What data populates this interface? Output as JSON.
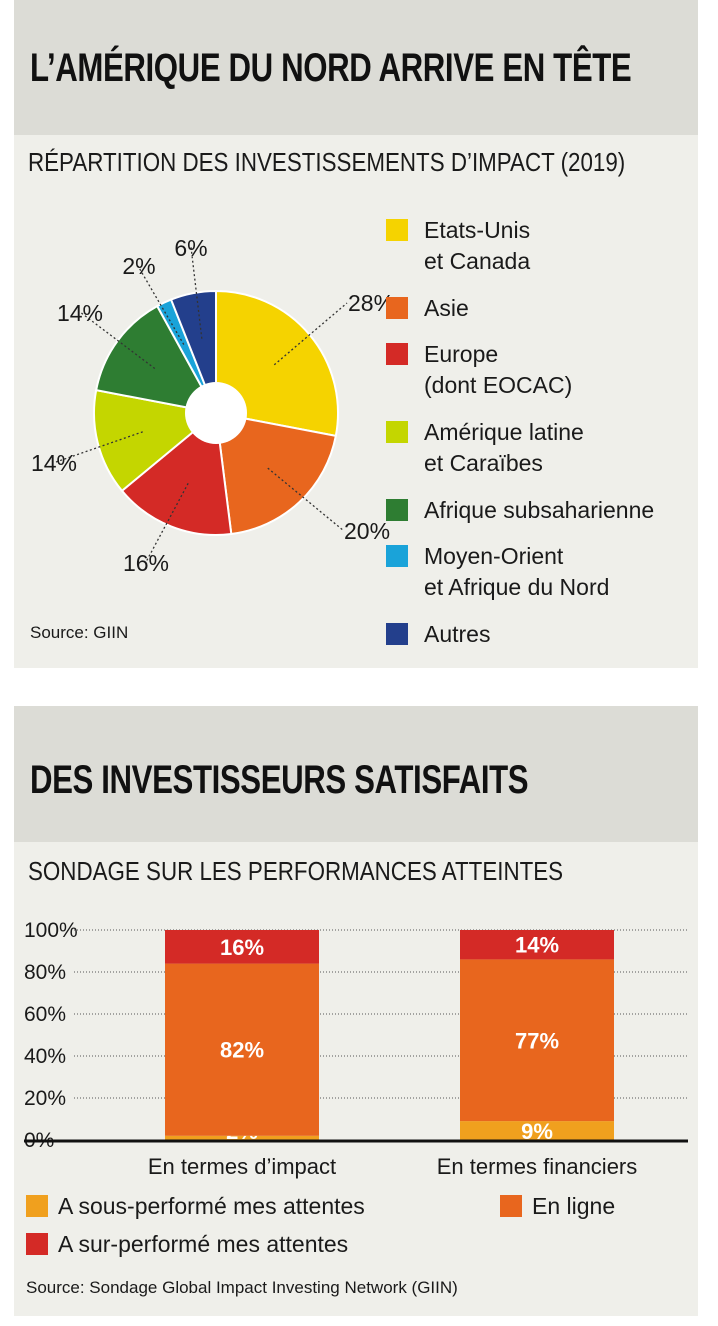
{
  "panel1": {
    "title": "L’AMÉRIQUE DU NORD ARRIVE EN TÊTE",
    "subtitle": "RÉPARTITION DES INVESTISSEMENTS D’IMPACT (2019)",
    "source": "Source: GIIN"
  },
  "panel2": {
    "title": "DES INVESTISSEURS SATISFAITS",
    "subtitle": "SONDAGE SUR LES PERFORMANCES ATTEINTES",
    "source": "Source: Sondage Global Impact Investing Network (GIIN)"
  },
  "chart_data": [
    {
      "type": "pie",
      "donut": true,
      "title": "RÉPARTITION DES INVESTISSEMENTS D’IMPACT (2019)",
      "slices": [
        {
          "label": "Etats-Unis\net Canada",
          "value": 28,
          "value_label": "28%",
          "color": "#f5d300"
        },
        {
          "label": "Asie",
          "value": 20,
          "value_label": "20%",
          "color": "#e8661e"
        },
        {
          "label": "Europe\n(dont EOCAC)",
          "value": 16,
          "value_label": "16%",
          "color": "#d42a26"
        },
        {
          "label": "Amérique latine\net Caraïbes",
          "value": 14,
          "value_label": "14%",
          "color": "#c4d600"
        },
        {
          "label": "Afrique subsaharienne",
          "value": 14,
          "value_label": "14%",
          "color": "#2e7d32"
        },
        {
          "label": "Moyen-Orient\net Afrique du Nord",
          "value": 2,
          "value_label": "2%",
          "color": "#1aa3d9"
        },
        {
          "label": "Autres",
          "value": 6,
          "value_label": "6%",
          "color": "#233f8c"
        }
      ],
      "legend_position": "right"
    },
    {
      "type": "bar",
      "stacked": true,
      "title": "SONDAGE SUR LES PERFORMANCES ATTEINTES",
      "categories": [
        "En termes d’impact",
        "En termes financiers"
      ],
      "series": [
        {
          "name": "A sous-performé mes attentes",
          "values": [
            2,
            9
          ],
          "value_labels": [
            "2%",
            "9%"
          ],
          "color": "#f0a01e"
        },
        {
          "name": "En ligne",
          "values": [
            82,
            77
          ],
          "value_labels": [
            "82%",
            "77%"
          ],
          "color": "#e8661e"
        },
        {
          "name": "A sur-performé mes attentes",
          "values": [
            16,
            14
          ],
          "value_labels": [
            "16%",
            "14%"
          ],
          "color": "#d42a26"
        }
      ],
      "yticks": [
        "0%",
        "20%",
        "40%",
        "60%",
        "80%",
        "100%"
      ],
      "ylim": [
        0,
        100
      ],
      "grid": "dotted",
      "legend_position": "bottom"
    }
  ]
}
